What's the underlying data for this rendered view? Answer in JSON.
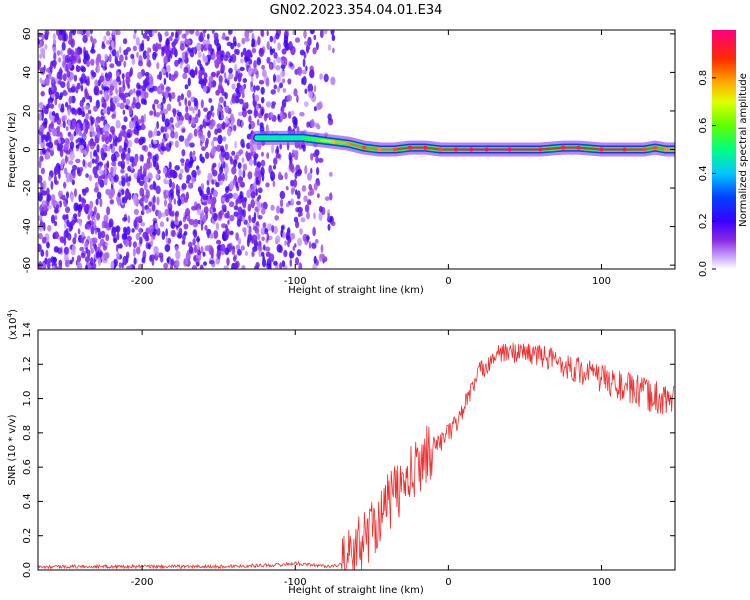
{
  "figure_title": "GN02.2023.354.04.01.E34",
  "chart_data": [
    {
      "type": "heatmap",
      "xlabel": "Height of straight line (km)",
      "ylabel": "Frequency (Hz)",
      "xlim": [
        -268,
        148
      ],
      "ylim": [
        -62,
        62
      ],
      "x_ticks": [
        -200,
        -100,
        0,
        100
      ],
      "x_tick_labels": [
        "-200",
        "-100",
        "0",
        "100"
      ],
      "y_ticks": [
        -60,
        -40,
        -20,
        0,
        20,
        40,
        60
      ],
      "y_tick_labels": [
        "-60",
        "-40",
        "-20",
        "0",
        "20",
        "40",
        "60"
      ],
      "colorbar": {
        "label": "Normalized spectral amplitude",
        "range": [
          0,
          1
        ],
        "ticks": [
          0.0,
          0.2,
          0.4,
          0.6,
          0.8
        ],
        "tick_labels": [
          "0.0",
          "0.2",
          "0.4",
          "0.6",
          "0.8"
        ],
        "colormap": "rainbow (white-violet-blue-cyan-green-yellow-orange-red-magenta)"
      },
      "noise_region_x": [
        -268,
        -75
      ],
      "signal_trace": {
        "x": [
          -125,
          -110,
          -95,
          -85,
          -75,
          -65,
          -55,
          -45,
          -35,
          -25,
          -15,
          -5,
          5,
          15,
          25,
          40,
          60,
          75,
          85,
          100,
          115,
          128,
          135,
          142,
          148
        ],
        "frequency_hz": [
          6,
          6,
          6,
          5,
          4,
          3,
          1,
          0,
          0,
          1,
          1,
          0,
          0,
          0,
          0,
          0,
          0,
          1,
          1,
          0,
          0,
          0,
          1,
          0,
          0
        ],
        "peak_amplitude": [
          0.5,
          0.45,
          0.5,
          0.6,
          0.75,
          0.8,
          0.85,
          0.8,
          0.85,
          0.9,
          0.9,
          0.85,
          0.9,
          0.95,
          0.95,
          0.95,
          0.9,
          0.9,
          0.9,
          0.9,
          0.9,
          0.85,
          0.85,
          0.8,
          0.8
        ]
      }
    },
    {
      "type": "line",
      "xlabel": "Height of straight line (km)",
      "ylabel": "SNR (10 * v/v)",
      "y_scale_label": "(x10",
      "y_scale_exp": "4",
      "y_scale_close": ")",
      "xlim": [
        -268,
        148
      ],
      "ylim": [
        0,
        1.4
      ],
      "x_ticks": [
        -200,
        -100,
        0,
        100
      ],
      "x_tick_labels": [
        "-200",
        "-100",
        "0",
        "100"
      ],
      "y_ticks": [
        0,
        0.2,
        0.4,
        0.6,
        0.8,
        1.0,
        1.2,
        1.4
      ],
      "y_tick_labels": [
        "0.0",
        "0.2",
        "0.4",
        "0.6",
        "0.8",
        "1.0",
        "1.2",
        "1.4"
      ],
      "series": [
        {
          "color": "#ee3030",
          "x": [
            -268,
            -200,
            -150,
            -110,
            -100,
            -90,
            -75,
            -65,
            -58,
            -50,
            -42,
            -35,
            -28,
            -20,
            -15,
            -10,
            -5,
            0,
            5,
            10,
            15,
            20,
            25,
            30,
            40,
            50,
            60,
            70,
            80,
            90,
            100,
            110,
            120,
            130,
            140,
            148
          ],
          "y": [
            0.02,
            0.02,
            0.02,
            0.03,
            0.04,
            0.03,
            0.02,
            0.06,
            0.15,
            0.25,
            0.35,
            0.45,
            0.5,
            0.6,
            0.68,
            0.72,
            0.75,
            0.8,
            0.85,
            0.95,
            1.05,
            1.15,
            1.2,
            1.25,
            1.27,
            1.27,
            1.25,
            1.22,
            1.18,
            1.15,
            1.12,
            1.08,
            1.05,
            1.02,
            1.0,
            0.98
          ]
        }
      ]
    }
  ]
}
